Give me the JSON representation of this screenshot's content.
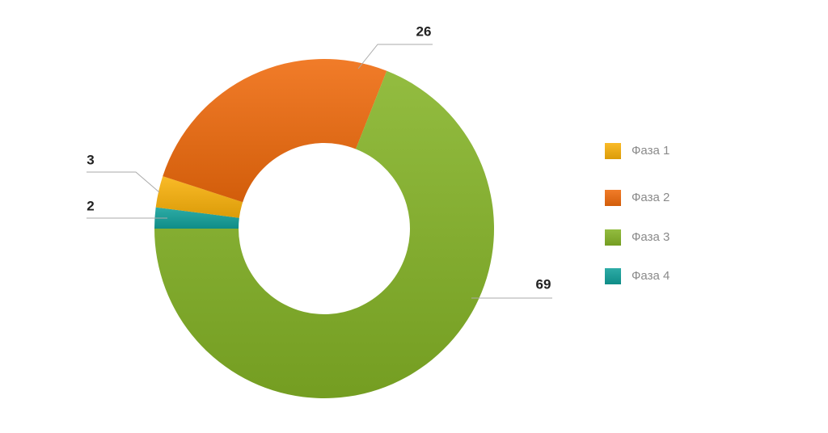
{
  "chart_data": {
    "type": "donut",
    "categories": [
      "Фаза 1",
      "Фаза 2",
      "Фаза 3",
      "Фаза 4"
    ],
    "values": [
      3,
      26,
      69,
      2
    ],
    "colors": [
      "#f9b10a",
      "#ef6a0c",
      "#84b326",
      "#11a09a"
    ],
    "legend": "right"
  }
}
